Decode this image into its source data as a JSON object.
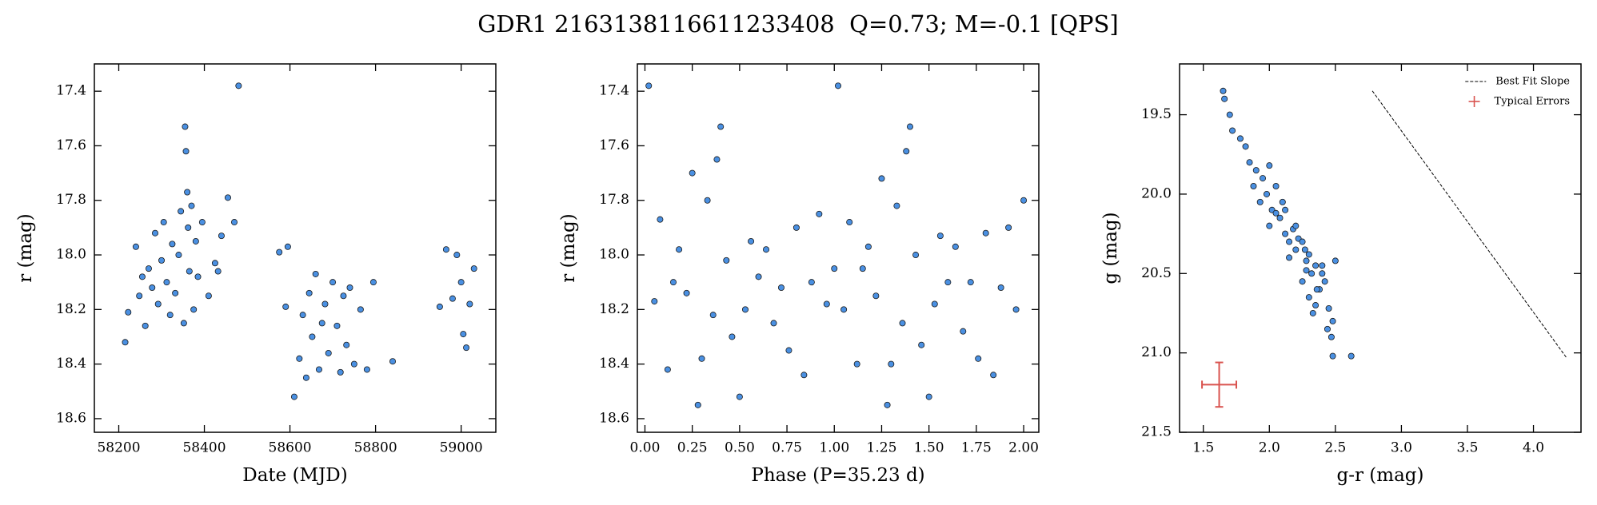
{
  "title": "GDR1 2163138116611233408  Q=0.73; M=-0.1 [QPS]",
  "chart_data": [
    {
      "type": "scatter",
      "xlabel": "Date (MJD)",
      "ylabel": "r (mag)",
      "color": "#4a90e2",
      "edgecolor": "#1a1a1a",
      "xlim": [
        58143,
        59081
      ],
      "xticks": [
        58200,
        58400,
        58600,
        58800,
        59000
      ],
      "ylim": [
        17.3,
        18.65
      ],
      "y_inverted": true,
      "yticks": [
        17.4,
        17.6,
        17.8,
        {
          "value": 18,
          "label": "18.0"
        },
        18.2,
        18.4,
        18.6
      ],
      "x": [
        58215,
        58222,
        58240,
        58248,
        58255,
        58262,
        58270,
        58278,
        58285,
        58292,
        58300,
        58305,
        58312,
        58320,
        58325,
        58332,
        58340,
        58345,
        58352,
        58355,
        58357,
        58360,
        58362,
        58365,
        58370,
        58375,
        58380,
        58385,
        58395,
        58410,
        58425,
        58432,
        58440,
        58455,
        58470,
        58480,
        58575,
        58590,
        58595,
        58610,
        58622,
        58630,
        58638,
        58645,
        58652,
        58660,
        58668,
        58675,
        58682,
        58690,
        58700,
        58710,
        58718,
        58725,
        58732,
        58740,
        58750,
        58765,
        58780,
        58795,
        58840,
        58950,
        58965,
        58980,
        58990,
        59000,
        59005,
        59012,
        59020,
        59030
      ],
      "values": [
        18.32,
        18.21,
        17.97,
        18.15,
        18.08,
        18.26,
        18.05,
        18.12,
        17.92,
        18.18,
        18.02,
        17.88,
        18.1,
        18.22,
        17.96,
        18.14,
        18.0,
        17.84,
        18.25,
        17.53,
        17.62,
        17.77,
        17.9,
        18.06,
        17.82,
        18.2,
        17.95,
        18.08,
        17.88,
        18.15,
        18.03,
        18.06,
        17.93,
        17.79,
        17.88,
        17.38,
        17.99,
        18.19,
        17.97,
        18.52,
        18.38,
        18.22,
        18.45,
        18.14,
        18.3,
        18.07,
        18.42,
        18.25,
        18.18,
        18.36,
        18.1,
        18.26,
        18.43,
        18.15,
        18.33,
        18.12,
        18.4,
        18.2,
        18.42,
        18.1,
        18.39,
        18.19,
        17.98,
        18.16,
        18.0,
        18.1,
        18.29,
        18.34,
        18.18,
        18.05
      ]
    },
    {
      "type": "scatter",
      "xlabel": "Phase (P=35.23 d)",
      "ylabel": "r (mag)",
      "color": "#4a90e2",
      "edgecolor": "#1a1a1a",
      "xlim": [
        -0.04,
        2.08
      ],
      "xticks": [
        {
          "value": 0,
          "label": "0.00"
        },
        0.25,
        {
          "value": 0.5,
          "label": "0.50"
        },
        0.75,
        {
          "value": 1,
          "label": "1.00"
        },
        1.25,
        {
          "value": 1.5,
          "label": "1.50"
        },
        1.75,
        {
          "value": 2,
          "label": "2.00"
        }
      ],
      "ylim": [
        17.3,
        18.65
      ],
      "y_inverted": true,
      "yticks": [
        17.4,
        17.6,
        17.8,
        {
          "value": 18,
          "label": "18.0"
        },
        18.2,
        18.4,
        18.6
      ],
      "x": [
        0.02,
        0.05,
        0.08,
        0.12,
        0.15,
        0.18,
        0.22,
        0.25,
        0.28,
        0.3,
        0.33,
        0.36,
        0.38,
        0.4,
        0.43,
        0.46,
        0.5,
        0.53,
        0.56,
        0.6,
        0.64,
        0.68,
        0.72,
        0.76,
        0.8,
        0.84,
        0.88,
        0.92,
        0.96,
        1.0,
        1.02,
        1.05,
        1.08,
        1.12,
        1.15,
        1.18,
        1.22,
        1.25,
        1.28,
        1.3,
        1.33,
        1.36,
        1.38,
        1.4,
        1.43,
        1.46,
        1.5,
        1.53,
        1.56,
        1.6,
        1.64,
        1.68,
        1.72,
        1.76,
        1.8,
        1.84,
        1.88,
        1.92,
        1.96,
        2.0
      ],
      "values": [
        17.38,
        18.17,
        17.87,
        18.42,
        18.1,
        17.98,
        18.14,
        17.7,
        18.55,
        18.38,
        17.8,
        18.22,
        17.65,
        17.53,
        18.02,
        18.3,
        18.52,
        18.2,
        17.95,
        18.08,
        17.98,
        18.25,
        18.12,
        18.35,
        17.9,
        18.44,
        18.1,
        17.85,
        18.18,
        18.05,
        17.38,
        18.2,
        17.88,
        18.4,
        18.05,
        17.97,
        18.15,
        17.72,
        18.55,
        18.4,
        17.82,
        18.25,
        17.62,
        17.53,
        18.0,
        18.33,
        18.52,
        18.18,
        17.93,
        18.1,
        17.97,
        18.28,
        18.1,
        18.38,
        17.92,
        18.44,
        18.12,
        17.9,
        18.2,
        17.8
      ]
    },
    {
      "type": "scatter",
      "xlabel": "g-r (mag)",
      "ylabel": "g (mag)",
      "color": "#4a90e2",
      "edgecolor": "#1a1a1a",
      "xlim": [
        1.32,
        4.36
      ],
      "xticks": [
        1.5,
        {
          "value": 2,
          "label": "2.0"
        },
        2.5,
        {
          "value": 3,
          "label": "3.0"
        },
        3.5,
        {
          "value": 4,
          "label": "4.0"
        }
      ],
      "ylim": [
        19.18,
        21.5
      ],
      "y_inverted": true,
      "yticks": [
        19.5,
        {
          "value": 20,
          "label": "20.0"
        },
        20.5,
        {
          "value": 21,
          "label": "21.0"
        },
        21.5
      ],
      "x": [
        1.65,
        1.66,
        1.72,
        1.7,
        1.78,
        1.82,
        1.85,
        1.9,
        1.88,
        1.95,
        1.98,
        2.0,
        1.93,
        2.02,
        2.05,
        2.08,
        2.0,
        2.1,
        2.12,
        2.15,
        2.05,
        2.18,
        2.2,
        2.22,
        2.15,
        2.25,
        2.28,
        2.3,
        2.2,
        2.32,
        2.35,
        2.25,
        2.38,
        2.4,
        2.3,
        2.42,
        2.28,
        2.45,
        2.48,
        2.35,
        2.5,
        2.44,
        2.47,
        2.36,
        2.27,
        2.33,
        2.4,
        2.48,
        2.62,
        2.12
      ],
      "values": [
        19.35,
        19.4,
        19.6,
        19.5,
        19.65,
        19.7,
        19.8,
        19.85,
        19.95,
        19.9,
        20.0,
        19.82,
        20.05,
        20.1,
        19.95,
        20.15,
        20.2,
        20.05,
        20.25,
        20.3,
        20.12,
        20.22,
        20.35,
        20.28,
        20.4,
        20.3,
        20.42,
        20.38,
        20.2,
        20.5,
        20.45,
        20.55,
        20.6,
        20.45,
        20.65,
        20.55,
        20.48,
        20.72,
        20.8,
        20.7,
        20.42,
        20.85,
        20.9,
        20.6,
        20.35,
        20.75,
        20.5,
        21.02,
        21.02,
        20.1
      ],
      "best_fit": {
        "name": "Best Fit Slope",
        "color": "#000000",
        "x": [
          2.78,
          4.25
        ],
        "values": [
          19.35,
          21.03
        ]
      },
      "typical_errors": {
        "name": "Typical Errors",
        "color": "#d9534f",
        "x": 1.62,
        "value": 21.2,
        "xerr": 0.13,
        "yerr": 0.14
      },
      "legend": "upper right"
    }
  ]
}
